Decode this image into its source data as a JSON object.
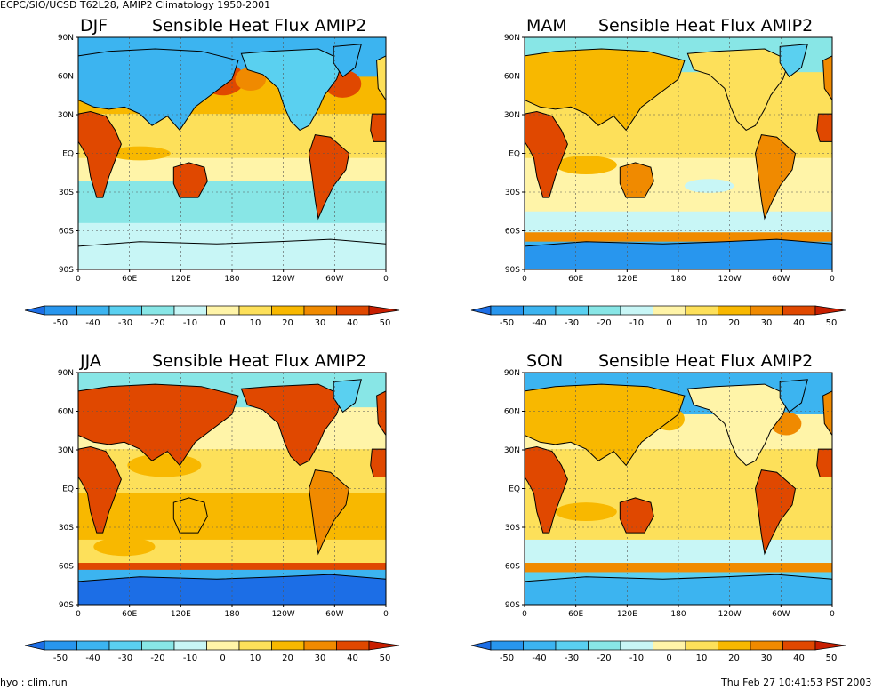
{
  "header": {
    "title": "ECPC/SIO/UCSD T62L28, AMIP2 Climatology 1950-2001"
  },
  "footer": {
    "left": "hyo : clim.run",
    "right": "Thu Feb 27 10:41:53 PST 2003"
  },
  "panel_title_suffix": "Sensible Heat Flux AMIP2",
  "panels": [
    {
      "season": "DJF"
    },
    {
      "season": "MAM"
    },
    {
      "season": "JJA"
    },
    {
      "season": "SON"
    }
  ],
  "lat_labels": [
    "90N",
    "60N",
    "30N",
    "EQ",
    "30S",
    "60S",
    "90S"
  ],
  "lon_labels": [
    "0",
    "60E",
    "120E",
    "180",
    "120W",
    "60W",
    "0"
  ],
  "colorbar": {
    "labels": [
      "-50",
      "-40",
      "-30",
      "-20",
      "-10",
      "0",
      "10",
      "20",
      "30",
      "40",
      "50"
    ],
    "colors": [
      "#1c6ee6",
      "#2896ee",
      "#3cb4f0",
      "#5ad0f0",
      "#88e6e6",
      "#c8f6f6",
      "#fff4a8",
      "#fde05a",
      "#f8b800",
      "#f08a00",
      "#e04800",
      "#c81e00"
    ]
  }
}
